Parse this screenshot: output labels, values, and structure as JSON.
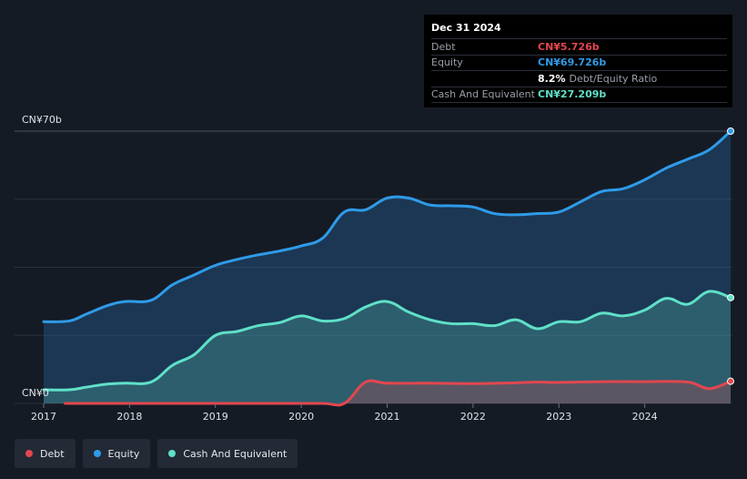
{
  "chart_data": {
    "type": "area",
    "title": "",
    "xlabel": "",
    "ylabel": "",
    "ylim": [
      0,
      70
    ],
    "y_unit": "CN¥ billions",
    "y_ticks": [
      {
        "value": 70,
        "label": "CN¥70b"
      },
      {
        "value": 0,
        "label": "CN¥0"
      }
    ],
    "x_ticks": [
      {
        "value": 2017.0,
        "label": "2017"
      },
      {
        "value": 2018.0,
        "label": "2018"
      },
      {
        "value": 2019.0,
        "label": "2019"
      },
      {
        "value": 2020.0,
        "label": "2020"
      },
      {
        "value": 2021.0,
        "label": "2021"
      },
      {
        "value": 2022.0,
        "label": "2022"
      },
      {
        "value": 2023.0,
        "label": "2023"
      },
      {
        "value": 2024.0,
        "label": "2024"
      }
    ],
    "xlim": [
      2016.7,
      2025.0
    ],
    "legend_position": "bottom-left",
    "series": [
      {
        "name": "Equity",
        "color": "#2f9be8",
        "x": [
          2017.0,
          2017.3,
          2017.5,
          2017.75,
          2017.95,
          2018.25,
          2018.5,
          2018.75,
          2019.0,
          2019.25,
          2019.5,
          2019.75,
          2020.0,
          2020.25,
          2020.5,
          2020.75,
          2021.0,
          2021.25,
          2021.5,
          2021.75,
          2022.0,
          2022.25,
          2022.5,
          2022.75,
          2023.0,
          2023.25,
          2023.5,
          2023.75,
          2024.0,
          2024.25,
          2024.5,
          2024.75,
          2025.0
        ],
        "values": [
          21,
          21.2,
          23,
          25.2,
          26.2,
          26.5,
          30.5,
          33,
          35.5,
          37,
          38.2,
          39.2,
          40.5,
          42.5,
          49.2,
          49.8,
          52.8,
          52.8,
          51,
          50.8,
          50.5,
          48.8,
          48.5,
          48.8,
          49.2,
          51.8,
          54.5,
          55.2,
          57.5,
          60.5,
          62.8,
          65.2,
          70
        ]
      },
      {
        "name": "Cash And Equivalent",
        "color": "#5fe0c8",
        "x": [
          2017.0,
          2017.3,
          2017.5,
          2017.75,
          2017.95,
          2018.25,
          2018.5,
          2018.75,
          2019.0,
          2019.25,
          2019.5,
          2019.75,
          2020.0,
          2020.25,
          2020.5,
          2020.75,
          2021.0,
          2021.25,
          2021.5,
          2021.75,
          2022.0,
          2022.25,
          2022.5,
          2022.75,
          2023.0,
          2023.25,
          2023.5,
          2023.75,
          2024.0,
          2024.25,
          2024.5,
          2024.75,
          2025.0
        ],
        "values": [
          3.5,
          3.5,
          4.2,
          5,
          5.2,
          5.5,
          9.8,
          12.5,
          17.5,
          18.5,
          20,
          20.8,
          22.5,
          21.2,
          21.8,
          24.8,
          26.2,
          23.5,
          21.5,
          20.5,
          20.5,
          20,
          21.5,
          19.2,
          21,
          21,
          23.2,
          22.5,
          24,
          27,
          25.5,
          28.8,
          27.2
        ]
      },
      {
        "name": "Debt",
        "color": "#e2474f",
        "x": [
          2017.25,
          2017.75,
          2018.25,
          2018.75,
          2019.25,
          2019.75,
          2020.25,
          2020.5,
          2020.75,
          2021.0,
          2021.5,
          2022.0,
          2022.5,
          2022.75,
          2023.0,
          2023.5,
          2024.0,
          2024.5,
          2024.75,
          2025.0
        ],
        "values": [
          0,
          0,
          0,
          0,
          0,
          0,
          0,
          0,
          5.5,
          5.2,
          5.2,
          5.1,
          5.3,
          5.5,
          5.4,
          5.6,
          5.6,
          5.5,
          3.8,
          5.7
        ]
      }
    ]
  },
  "tooltip": {
    "date": "Dec 31 2024",
    "debt_label": "Debt",
    "debt_value": "CN¥5.726b",
    "equity_label": "Equity",
    "equity_value": "CN¥69.726b",
    "ratio_value": "8.2%",
    "ratio_label": "Debt/Equity Ratio",
    "cash_label": "Cash And Equivalent",
    "cash_value": "CN¥27.209b"
  },
  "legend": [
    {
      "label": "Debt",
      "color": "#e2474f"
    },
    {
      "label": "Equity",
      "color": "#2f9be8"
    },
    {
      "label": "Cash And Equivalent",
      "color": "#5fe0c8"
    }
  ]
}
